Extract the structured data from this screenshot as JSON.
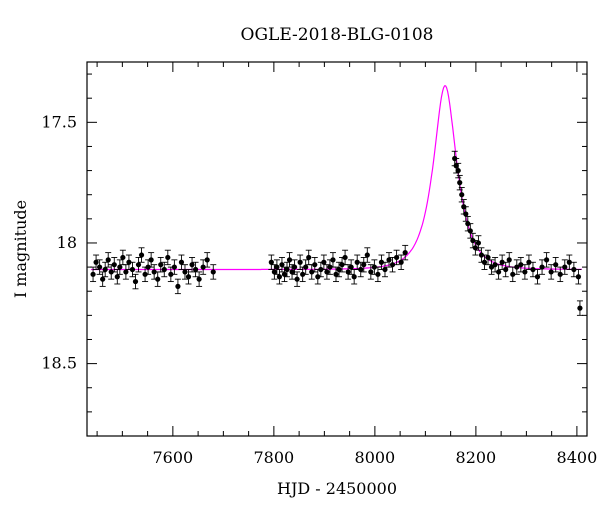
{
  "chart_data": {
    "type": "scatter",
    "title": "OGLE-2018-BLG-0108",
    "xlabel": "HJD - 2450000",
    "ylabel": "I magnitude",
    "xlim": [
      7430,
      8420
    ],
    "ylim": [
      18.8,
      17.25
    ],
    "y_inverted": true,
    "x_ticks": [
      7600,
      7800,
      8000,
      8200,
      8400
    ],
    "x_tick_labels": [
      "7600",
      "7800",
      "8000",
      "8200",
      "8400"
    ],
    "y_ticks": [
      17.5,
      18,
      18.5
    ],
    "y_tick_labels": [
      "17.5",
      "18",
      "18.5"
    ],
    "grid": false,
    "legend": "none",
    "colors": {
      "points": "#000000",
      "model": "#ff00ff"
    },
    "series": [
      {
        "type": "scatter_errorbars",
        "x": [
          7442,
          7448,
          7455,
          7461,
          7466,
          7472,
          7478,
          7484,
          7490,
          7495,
          7501,
          7507,
          7513,
          7520,
          7526,
          7532,
          7538,
          7545,
          7551,
          7557,
          7563,
          7570,
          7576,
          7583,
          7590,
          7596,
          7603,
          7610,
          7617,
          7624,
          7631,
          7638,
          7645,
          7652,
          7660,
          7668,
          7680,
          7795,
          7801,
          7806,
          7811,
          7816,
          7821,
          7826,
          7831,
          7836,
          7841,
          7846,
          7852,
          7857,
          7863,
          7869,
          7875,
          7881,
          7887,
          7893,
          7899,
          7905,
          7911,
          7917,
          7923,
          7929,
          7935,
          7941,
          7947,
          7953,
          7959,
          7965,
          7972,
          7978,
          7985,
          7992,
          7999,
          8006,
          8013,
          8020,
          8028,
          8035,
          8043,
          8052,
          8060,
          8158,
          8161,
          8165,
          8168,
          8172,
          8176,
          8180,
          8184,
          8189,
          8194,
          8199,
          8205,
          8211,
          8217,
          8224,
          8231,
          8238,
          8245,
          8252,
          8259,
          8266,
          8273,
          8281,
          8289,
          8297,
          8305,
          8313,
          8322,
          8331,
          8340,
          8349,
          8358,
          8367,
          8376,
          8385,
          8394,
          8403,
          8406
        ],
        "y": [
          18.13,
          18.08,
          18.1,
          18.15,
          18.11,
          18.07,
          18.12,
          18.09,
          18.14,
          18.1,
          18.06,
          18.12,
          18.08,
          18.11,
          18.16,
          18.09,
          18.05,
          18.13,
          18.1,
          18.07,
          18.12,
          18.15,
          18.09,
          18.11,
          18.06,
          18.13,
          18.1,
          18.18,
          18.08,
          18.12,
          18.14,
          18.09,
          18.11,
          18.15,
          18.1,
          18.07,
          18.12,
          18.08,
          18.12,
          18.1,
          18.14,
          18.09,
          18.13,
          18.11,
          18.07,
          18.12,
          18.1,
          18.15,
          18.08,
          18.13,
          18.1,
          18.06,
          18.12,
          18.09,
          18.14,
          18.11,
          18.08,
          18.12,
          18.1,
          18.07,
          18.13,
          18.11,
          18.09,
          18.06,
          18.12,
          18.1,
          18.14,
          18.08,
          18.11,
          18.09,
          18.05,
          18.12,
          18.1,
          18.13,
          18.08,
          18.11,
          18.07,
          18.09,
          18.06,
          18.08,
          18.04,
          17.65,
          17.68,
          17.7,
          17.75,
          17.8,
          17.85,
          17.88,
          17.92,
          17.95,
          17.99,
          18.02,
          18.0,
          18.05,
          18.08,
          18.06,
          18.1,
          18.09,
          18.12,
          18.08,
          18.11,
          18.07,
          18.13,
          18.1,
          18.09,
          18.12,
          18.08,
          18.11,
          18.14,
          18.1,
          18.07,
          18.12,
          18.09,
          18.13,
          18.1,
          18.08,
          18.11,
          18.14,
          18.27
        ],
        "yerr": 0.03
      },
      {
        "type": "line",
        "name_hidden": true,
        "model": "pspl",
        "baseline": 18.11,
        "t0": 8139,
        "tE": 38,
        "u0": 0.55
      }
    ]
  }
}
